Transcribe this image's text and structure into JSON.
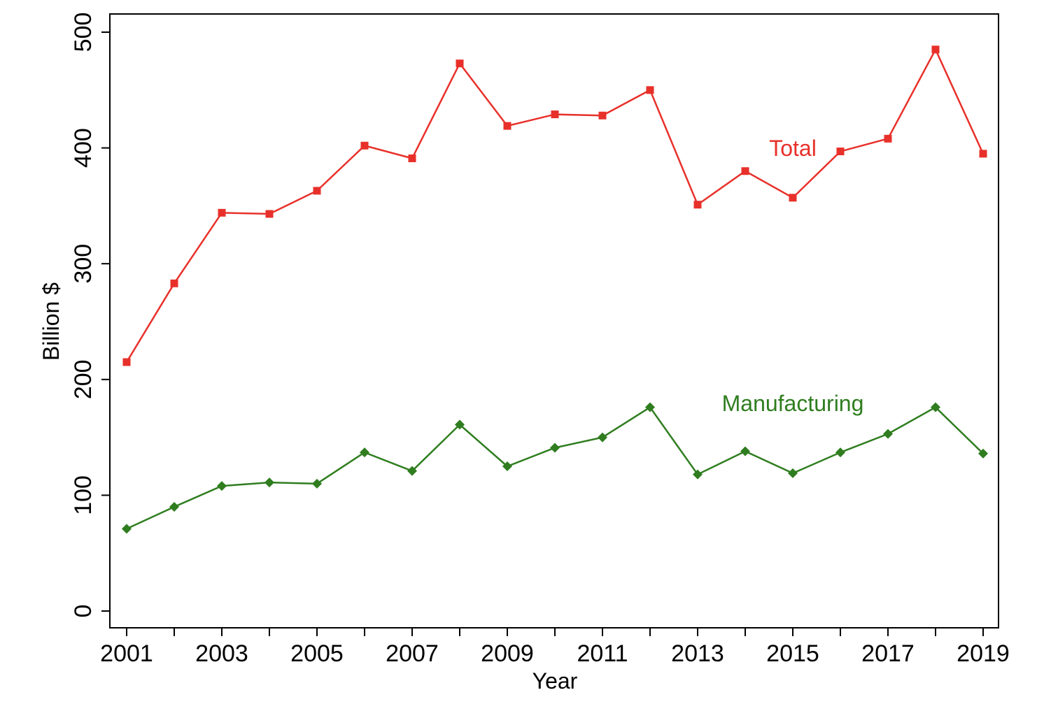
{
  "chart_data": {
    "type": "line",
    "title": "",
    "xlabel": "Year",
    "ylabel": "Billion $",
    "x": [
      2001,
      2002,
      2003,
      2004,
      2005,
      2006,
      2007,
      2008,
      2009,
      2010,
      2011,
      2012,
      2013,
      2014,
      2015,
      2016,
      2017,
      2018,
      2019
    ],
    "xticks": [
      2001,
      2003,
      2005,
      2007,
      2009,
      2011,
      2013,
      2015,
      2017,
      2019
    ],
    "yticks": [
      0,
      100,
      200,
      300,
      400,
      500
    ],
    "xlim": [
      2001,
      2019
    ],
    "ylim": [
      0,
      500
    ],
    "grid": false,
    "legend": "none (series labelled inline)",
    "series": [
      {
        "name": "Total",
        "color": "#e8302a",
        "marker": "square",
        "values": [
          215,
          283,
          344,
          343,
          363,
          402,
          391,
          473,
          419,
          429,
          428,
          450,
          351,
          380,
          357,
          397,
          408,
          485,
          395
        ]
      },
      {
        "name": "Manufacturing",
        "color": "#2f7d1f",
        "marker": "diamond",
        "values": [
          71,
          90,
          108,
          111,
          110,
          137,
          121,
          161,
          125,
          141,
          150,
          176,
          118,
          138,
          119,
          137,
          153,
          176,
          136
        ]
      }
    ]
  }
}
